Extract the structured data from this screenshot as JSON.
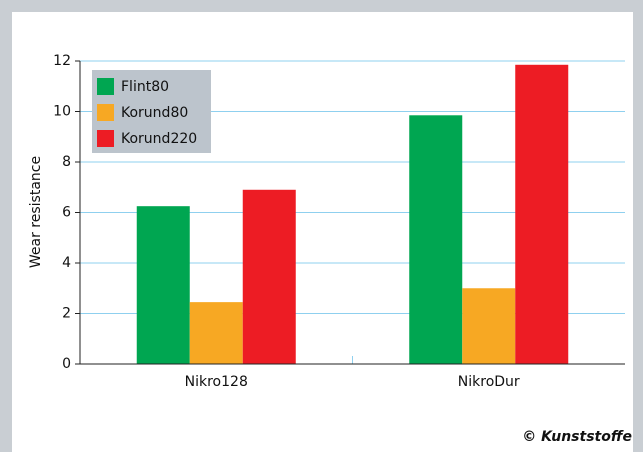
{
  "chart_data": {
    "type": "bar",
    "ylabel": "Wear resistance",
    "categories": [
      "Nikro128",
      "NikroDur"
    ],
    "series": [
      {
        "name": "Flint80",
        "color": "#00a651",
        "values": [
          6.25,
          9.85
        ]
      },
      {
        "name": "Korund80",
        "color": "#f7a823",
        "values": [
          2.45,
          3.0
        ]
      },
      {
        "name": "Korund220",
        "color": "#ed1c24",
        "values": [
          6.9,
          11.85
        ]
      }
    ],
    "ylim": [
      0,
      12
    ],
    "yticks": [
      0,
      2,
      4,
      6,
      8,
      10,
      12
    ],
    "grid": true,
    "legend": "upper left",
    "credit": "© Kunststoffe"
  }
}
